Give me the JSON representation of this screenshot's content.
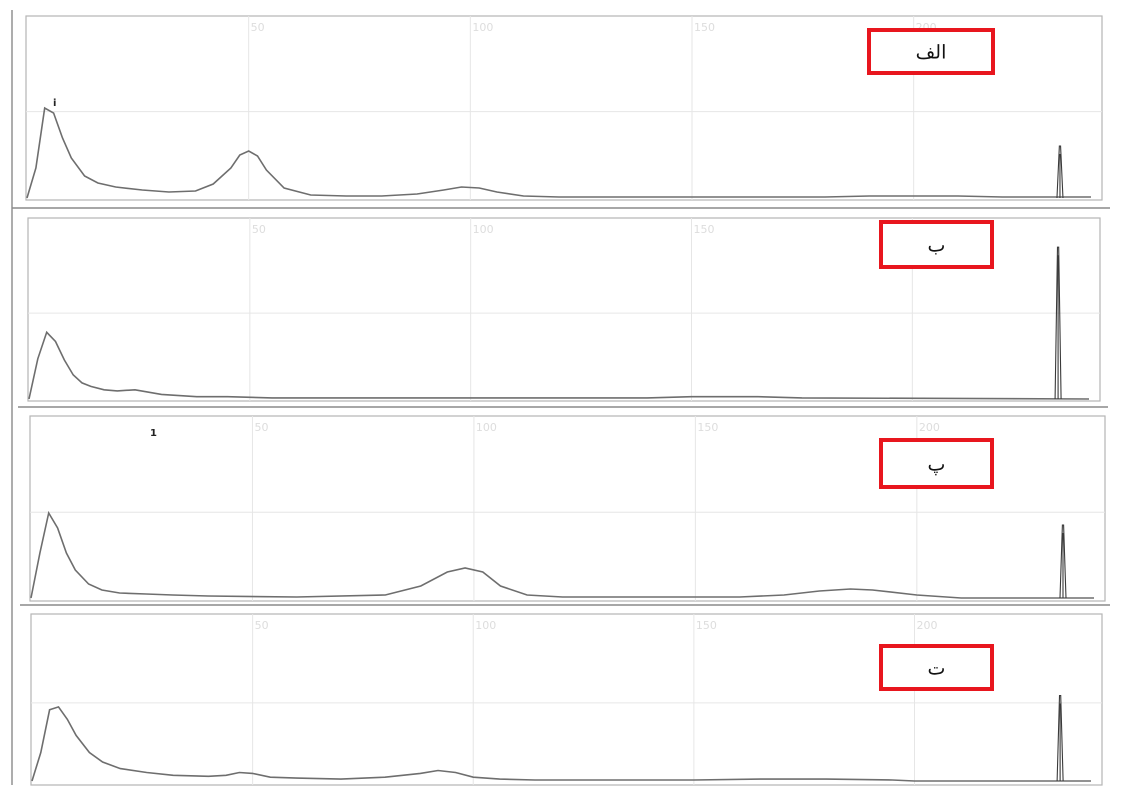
{
  "chart_data": [
    {
      "type": "line",
      "label": "الف",
      "peak_marker": "i",
      "x_range": [
        0,
        240
      ],
      "y_range": [
        0,
        1
      ],
      "x_ticks": [
        0,
        50,
        100,
        150,
        200
      ],
      "grid": true,
      "x": [
        0,
        2,
        4,
        6,
        8,
        10,
        13,
        16,
        20,
        26,
        32,
        38,
        42,
        46,
        48,
        50,
        52,
        54,
        58,
        64,
        72,
        80,
        88,
        94,
        98,
        102,
        106,
        112,
        120,
        150,
        180,
        190,
        200,
        210,
        220,
        240
      ],
      "values": [
        0.0,
        0.3,
        0.9,
        0.85,
        0.6,
        0.4,
        0.22,
        0.15,
        0.11,
        0.08,
        0.06,
        0.07,
        0.14,
        0.3,
        0.43,
        0.47,
        0.42,
        0.28,
        0.1,
        0.03,
        0.02,
        0.02,
        0.04,
        0.08,
        0.11,
        0.1,
        0.06,
        0.02,
        0.01,
        0.01,
        0.01,
        0.02,
        0.02,
        0.02,
        0.01,
        0.01
      ],
      "spike": {
        "x": 233,
        "height": 0.52
      }
    },
    {
      "type": "line",
      "label": "ب",
      "x_range": [
        0,
        240
      ],
      "y_range": [
        0,
        1
      ],
      "x_ticks": [
        0,
        50,
        100,
        150,
        200
      ],
      "grid": true,
      "x": [
        0,
        2,
        4,
        6,
        8,
        10,
        12,
        14,
        17,
        20,
        24,
        30,
        38,
        45,
        55,
        70,
        100,
        120,
        140,
        150,
        155,
        165,
        175,
        240
      ],
      "values": [
        0.0,
        0.35,
        0.58,
        0.5,
        0.34,
        0.21,
        0.14,
        0.11,
        0.08,
        0.07,
        0.08,
        0.04,
        0.02,
        0.02,
        0.01,
        0.01,
        0.01,
        0.01,
        0.01,
        0.02,
        0.02,
        0.02,
        0.01,
        0.0
      ],
      "spike": {
        "x": 233,
        "height": 1.32
      }
    },
    {
      "type": "line",
      "label": "پ",
      "peak_marker": "1",
      "x_range": [
        0,
        240
      ],
      "y_range": [
        0,
        1
      ],
      "x_ticks": [
        0,
        50,
        100,
        150,
        200
      ],
      "grid": true,
      "x": [
        0,
        2,
        4,
        6,
        8,
        10,
        13,
        16,
        20,
        26,
        32,
        40,
        60,
        80,
        88,
        94,
        98,
        102,
        106,
        112,
        120,
        140,
        160,
        170,
        178,
        185,
        190,
        200,
        210,
        240
      ],
      "values": [
        0.0,
        0.45,
        0.85,
        0.7,
        0.45,
        0.28,
        0.14,
        0.08,
        0.05,
        0.04,
        0.03,
        0.02,
        0.01,
        0.03,
        0.12,
        0.26,
        0.3,
        0.26,
        0.12,
        0.03,
        0.01,
        0.01,
        0.01,
        0.03,
        0.07,
        0.09,
        0.08,
        0.03,
        0.0,
        0.0
      ],
      "spike": {
        "x": 233,
        "height": 0.73
      }
    },
    {
      "type": "line",
      "label": "ت",
      "x_range": [
        0,
        240
      ],
      "y_range": [
        0,
        1
      ],
      "x_ticks": [
        0,
        50,
        100,
        150,
        200
      ],
      "grid": true,
      "x": [
        0,
        2,
        4,
        6,
        8,
        10,
        13,
        16,
        20,
        26,
        32,
        40,
        44,
        47,
        50,
        54,
        60,
        70,
        80,
        88,
        92,
        96,
        100,
        106,
        114,
        130,
        150,
        165,
        180,
        195,
        200,
        240
      ],
      "values": [
        0.0,
        0.3,
        0.75,
        0.78,
        0.65,
        0.48,
        0.3,
        0.2,
        0.13,
        0.09,
        0.06,
        0.05,
        0.06,
        0.09,
        0.08,
        0.04,
        0.03,
        0.02,
        0.04,
        0.08,
        0.11,
        0.09,
        0.04,
        0.02,
        0.01,
        0.01,
        0.01,
        0.02,
        0.02,
        0.01,
        0.0,
        0.0
      ],
      "spike": {
        "x": 233,
        "height": 0.9
      }
    }
  ]
}
